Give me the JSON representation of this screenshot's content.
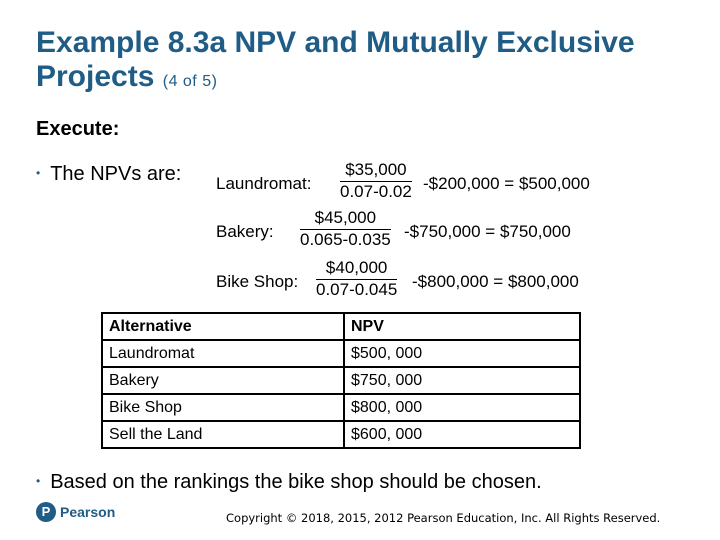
{
  "slide": {
    "title": "Example 8.3a NPV and Mutually Exclusive Projects",
    "title_suffix": "(4 of 5)",
    "heading": "Execute:",
    "bullet1": "The NPVs are:",
    "bullet2": "Based on the rankings the bike shop should be chosen.",
    "accent_color": "#1f5c86"
  },
  "equations": [
    {
      "label": "Laundromat:",
      "numerator": "$35,000",
      "denominator": "0.07-0.02",
      "rest": "-$200,000 = $500,000"
    },
    {
      "label": "Bakery:",
      "numerator": "$45,000",
      "denominator": "0.065-0.035",
      "rest": "-$750,000 = $750,000"
    },
    {
      "label": "Bike Shop:",
      "numerator": "$40,000",
      "denominator": "0.07-0.045",
      "rest": "-$800,000 = $800,000"
    }
  ],
  "table": {
    "headers": [
      "Alternative",
      "NPV"
    ],
    "rows": [
      [
        "Laundromat",
        "$500, 000"
      ],
      [
        "Bakery",
        "$750, 000"
      ],
      [
        "Bike Shop",
        "$800, 000"
      ],
      [
        "Sell the Land",
        "$600, 000"
      ]
    ]
  },
  "footer": {
    "logo_text": "Pearson",
    "logo_letter": "P",
    "copyright": "Copyright © 2018, 2015, 2012 Pearson Education, Inc. All Rights Reserved."
  }
}
